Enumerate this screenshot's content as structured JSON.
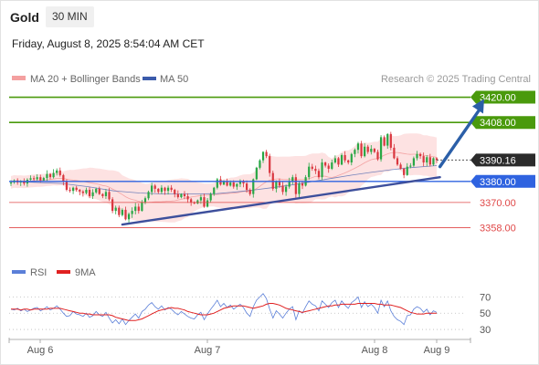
{
  "header": {
    "instrument": "Gold",
    "timeframe": "30 MIN",
    "datetime": "Friday, August 8, 2025 8:54:04 AM CET",
    "credit": "Research © 2025 Trading Central"
  },
  "legend": {
    "ma20_bb": "MA 20 + Bollinger Bands",
    "ma50": "MA 50",
    "rsi": "RSI",
    "rsi_ma": "9MA"
  },
  "colors": {
    "green": "#4a9a0c",
    "blue": "#2f63e0",
    "red": "#e04848",
    "trendline": "#3d4f9c",
    "arrow": "#2b5fa8",
    "bollinger_fill": "#fde2e2",
    "ma20": "#f08a8a",
    "ma50": "#3b5bab",
    "candle_up": "#28a745",
    "candle_down": "#d9363e",
    "current_price_bg": "#2b2b2b"
  },
  "chart_data": {
    "type": "candlestick",
    "price_range": [
      3350,
      3425
    ],
    "levels": [
      {
        "label": "3420.00",
        "value": 3420,
        "kind": "resistance"
      },
      {
        "label": "3408.00",
        "value": 3408,
        "kind": "resistance"
      },
      {
        "label": "3390.16",
        "value": 3390.16,
        "kind": "current"
      },
      {
        "label": "3380.00",
        "value": 3380,
        "kind": "pivot"
      },
      {
        "label": "3370.00",
        "value": 3370,
        "kind": "support"
      },
      {
        "label": "3358.00",
        "value": 3358,
        "kind": "support"
      }
    ],
    "closes": [
      3379.5,
      3380.5,
      3379.5,
      3380.2,
      3379.0,
      3380.8,
      3381.5,
      3381.0,
      3382.0,
      3380.5,
      3381.6,
      3383.5,
      3382.0,
      3384.0,
      3385.2,
      3383.0,
      3380.0,
      3376.0,
      3375.5,
      3377.0,
      3376.0,
      3375.2,
      3374.5,
      3376.0,
      3373.0,
      3374.8,
      3376.5,
      3374.0,
      3373.0,
      3375.0,
      3371.5,
      3366.0,
      3367.5,
      3364.0,
      3366.5,
      3362.0,
      3364.5,
      3366.0,
      3368.0,
      3366.0,
      3370.0,
      3372.0,
      3375.0,
      3378.0,
      3376.5,
      3375.0,
      3377.0,
      3375.5,
      3377.0,
      3376.0,
      3374.0,
      3372.5,
      3374.0,
      3373.0,
      3371.5,
      3370.0,
      3369.5,
      3371.0,
      3372.5,
      3368.0,
      3371.0,
      3374.0,
      3377.0,
      3381.0,
      3378.5,
      3380.0,
      3378.0,
      3379.5,
      3377.5,
      3378.8,
      3380.0,
      3379.0,
      3376.0,
      3374.0,
      3381.0,
      3386.5,
      3390.0,
      3394.0,
      3392.0,
      3384.0,
      3376.5,
      3380.0,
      3378.0,
      3375.0,
      3377.5,
      3380.0,
      3382.0,
      3374.0,
      3379.0,
      3378.0,
      3382.0,
      3387.0,
      3386.0,
      3385.0,
      3382.0,
      3389.0,
      3387.5,
      3386.0,
      3389.0,
      3391.0,
      3388.0,
      3392.5,
      3390.0,
      3389.0,
      3393.0,
      3395.0,
      3398.0,
      3392.0,
      3396.5,
      3394.0,
      3395.5,
      3394.0,
      3390.5,
      3401.0,
      3397.0,
      3402.5,
      3396.0,
      3391.0,
      3388.0,
      3386.0,
      3383.0,
      3387.0,
      3387.5,
      3391.0,
      3393.0,
      3392.0,
      3389.0,
      3391.5,
      3388.0,
      3391.0,
      3390.16
    ],
    "ma50_path": [
      [
        0,
        3380.0
      ],
      [
        20,
        3379.5
      ],
      [
        40,
        3379.0
      ],
      [
        60,
        3377.5
      ],
      [
        80,
        3375.5
      ],
      [
        100,
        3374.5
      ],
      [
        120,
        3374.0
      ],
      [
        140,
        3374.0
      ],
      [
        160,
        3374.2
      ],
      [
        175,
        3375.0
      ],
      [
        190,
        3376.0
      ],
      [
        205,
        3377.2
      ],
      [
        220,
        3378.5
      ],
      [
        235,
        3380.0
      ],
      [
        250,
        3381.5
      ],
      [
        265,
        3383.0
      ],
      [
        280,
        3384.3
      ],
      [
        295,
        3385.5
      ],
      [
        310,
        3386.5
      ],
      [
        331,
        3387.5
      ]
    ],
    "trendline": {
      "from": [
        34,
        3359.5
      ],
      "to": [
        131,
        3382.0
      ]
    },
    "arrow": {
      "from": [
        131,
        3387.0
      ],
      "to": [
        135,
        3420.0
      ]
    },
    "rsi": {
      "range": [
        20,
        85
      ],
      "levels": [
        70,
        50,
        30
      ],
      "rsi_values": [
        55,
        54,
        56,
        53,
        55,
        52,
        54,
        56,
        57,
        53,
        55,
        58,
        54,
        56,
        59,
        55,
        50,
        46,
        47,
        52,
        49,
        48,
        46,
        50,
        45,
        47,
        52,
        48,
        46,
        51,
        44,
        38,
        42,
        37,
        43,
        36,
        41,
        45,
        49,
        44,
        52,
        55,
        60,
        63,
        58,
        55,
        59,
        54,
        57,
        55,
        51,
        48,
        52,
        49,
        46,
        44,
        43,
        48,
        51,
        42,
        49,
        55,
        60,
        66,
        58,
        62,
        57,
        60,
        55,
        58,
        61,
        57,
        50,
        46,
        58,
        66,
        70,
        74,
        68,
        55,
        44,
        53,
        49,
        44,
        50,
        55,
        58,
        42,
        53,
        50,
        58,
        65,
        61,
        59,
        53,
        65,
        61,
        57,
        63,
        66,
        57,
        65,
        60,
        56,
        63,
        66,
        70,
        57,
        64,
        58,
        61,
        57,
        50,
        66,
        58,
        65,
        53,
        46,
        42,
        40,
        36,
        47,
        48,
        55,
        58,
        56,
        51,
        55,
        48,
        53,
        51
      ],
      "ma_values": [
        55,
        55,
        55,
        54,
        55,
        55,
        54,
        55,
        55,
        55,
        55,
        55,
        56,
        56,
        56,
        56,
        55,
        54,
        53,
        52,
        51,
        50,
        50,
        49,
        49,
        48,
        48,
        48,
        48,
        48,
        48,
        47,
        45,
        44,
        43,
        42,
        41,
        41,
        41,
        42,
        43,
        45,
        47,
        49,
        51,
        53,
        54,
        55,
        56,
        57,
        56,
        56,
        55,
        54,
        52,
        51,
        50,
        49,
        48,
        48,
        48,
        49,
        50,
        52,
        54,
        56,
        57,
        58,
        59,
        59,
        59,
        59,
        58,
        57,
        56,
        57,
        58,
        59,
        61,
        62,
        62,
        61,
        60,
        58,
        56,
        55,
        54,
        53,
        52,
        51,
        52,
        53,
        54,
        55,
        56,
        57,
        58,
        59,
        59,
        60,
        60,
        61,
        61,
        61,
        61,
        61,
        62,
        62,
        62,
        62,
        62,
        62,
        61,
        61,
        60,
        60,
        60,
        59,
        58,
        57,
        55,
        53,
        51,
        50,
        49,
        49,
        49,
        50,
        50,
        50,
        50
      ]
    },
    "x_axis": {
      "labels": [
        "Aug 6",
        "Aug 7",
        "Aug 8",
        "Aug 9"
      ],
      "positions": [
        3,
        50,
        102,
        120
      ]
    }
  }
}
